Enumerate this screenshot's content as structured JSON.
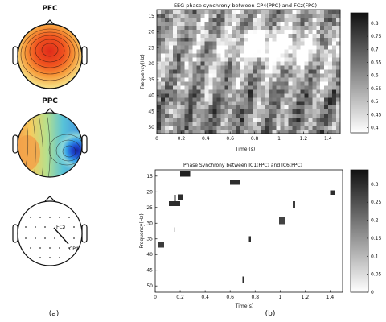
{
  "panel_a": {
    "caption": "(a)",
    "top_map_title": "PFC",
    "middle_map_title": "PPC",
    "electrode_labels": [
      "FCz",
      "CP4"
    ]
  },
  "panel_b": {
    "caption": "(b)"
  },
  "colors": {
    "topo_top_center": "#e32a1a",
    "topo_top_edge": "#f6e9a3",
    "topo_mid_hot": "#1a3fc4",
    "topo_mid_cool": "#f7d06e",
    "grayscale_high": "#111111",
    "grayscale_low": "#ffffff"
  },
  "chart_data": [
    {
      "type": "heatmap",
      "title": "EEG phase synchrony between CP4(PPC) and FCz(FPC)",
      "xlabel": "Time (s)",
      "ylabel": "Frequency(Hz)",
      "xlim": [
        0,
        1.5
      ],
      "ylim": [
        13,
        52
      ],
      "x_ticks": [
        "0",
        "0.2",
        "0.4",
        "0.6",
        "0.8",
        "1",
        "1.2",
        "1.4"
      ],
      "y_ticks": [
        "15",
        "20",
        "25",
        "30",
        "35",
        "40",
        "45",
        "50"
      ],
      "colorbar_ticks": [
        "0.8",
        "0.75",
        "0.7",
        "0.65",
        "0.6",
        "0.55",
        "0.5",
        "0.45",
        "0.4"
      ],
      "colorbar_range": [
        0.38,
        0.84
      ],
      "description": "dense grayscale synchrony map; high synchrony band around 20-30 Hz between 0.6 and 1.4 s"
    },
    {
      "type": "heatmap",
      "title": "Phase Synchrony between IC1(FPC) and IC6(PPC)",
      "xlabel": "Time(s)",
      "ylabel": "Frequency(Hz)",
      "xlim": [
        0,
        1.5
      ],
      "ylim": [
        13,
        52
      ],
      "x_ticks": [
        "0",
        "0.2",
        "0.4",
        "0.6",
        "0.8",
        "1",
        "1.2",
        "1.4"
      ],
      "y_ticks": [
        "15",
        "20",
        "25",
        "30",
        "35",
        "40",
        "45",
        "50"
      ],
      "colorbar_ticks": [
        "0.3",
        "0.25",
        "0.2",
        "0.15",
        "0.1",
        "0.05",
        "0"
      ],
      "colorbar_range": [
        0,
        0.34
      ],
      "patches": [
        {
          "t0": 0.2,
          "t1": 0.28,
          "f0": 13.5,
          "f1": 15.2,
          "value": 0.32
        },
        {
          "t0": 0.6,
          "t1": 0.68,
          "f0": 16.2,
          "f1": 17.8,
          "value": 0.3
        },
        {
          "t0": 1.4,
          "t1": 1.44,
          "f0": 19.5,
          "f1": 21.0,
          "value": 0.3
        },
        {
          "t0": 0.18,
          "t1": 0.22,
          "f0": 20.8,
          "f1": 22.8,
          "value": 0.3
        },
        {
          "t0": 0.15,
          "t1": 0.165,
          "f0": 21.0,
          "f1": 24.5,
          "value": 0.3
        },
        {
          "t0": 0.11,
          "t1": 0.2,
          "f0": 23.0,
          "f1": 24.5,
          "value": 0.3
        },
        {
          "t0": 1.1,
          "t1": 1.12,
          "f0": 23.0,
          "f1": 25.0,
          "value": 0.28
        },
        {
          "t0": 0.99,
          "t1": 1.04,
          "f0": 28.2,
          "f1": 30.3,
          "value": 0.27
        },
        {
          "t0": 0.15,
          "t1": 0.158,
          "f0": 31.3,
          "f1": 32.8,
          "value": 0.12
        },
        {
          "t0": 0.75,
          "t1": 0.765,
          "f0": 34.2,
          "f1": 36.0,
          "value": 0.3
        },
        {
          "t0": 0.02,
          "t1": 0.07,
          "f0": 36.0,
          "f1": 37.8,
          "value": 0.28
        },
        {
          "t0": 0.7,
          "t1": 0.715,
          "f0": 47.0,
          "f1": 49.0,
          "value": 0.3
        }
      ]
    }
  ]
}
